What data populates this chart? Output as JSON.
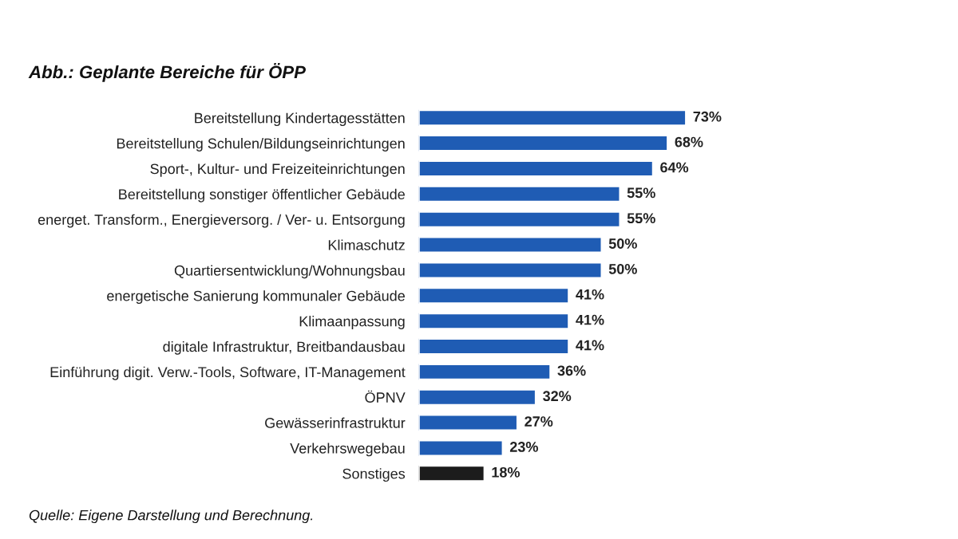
{
  "chart_data": {
    "type": "bar",
    "orientation": "horizontal",
    "title": "Abb.: Geplante Bereiche für ÖPP",
    "categories": [
      "Bereitstellung Kindertagesstätten",
      "Bereitstellung Schulen/Bildungseinrichtungen",
      "Sport-, Kultur- und Freizeiteinrichtungen",
      "Bereitstellung sonstiger öffentlicher Gebäude",
      "energet. Transform., Energieversorg. / Ver- u. Entsorgung",
      "Klimaschutz",
      "Quartiersentwicklung/Wohnungsbau",
      "energetische Sanierung kommunaler Gebäude",
      "Klimaanpassung",
      "digitale Infrastruktur, Breitbandausbau",
      "Einführung digit. Verw.-Tools, Software, IT-Management",
      "ÖPNV",
      "Gewässerinfrastruktur",
      "Verkehrswegebau",
      "Sonstiges"
    ],
    "values": [
      73,
      68,
      64,
      55,
      55,
      50,
      50,
      41,
      41,
      41,
      36,
      32,
      27,
      23,
      18
    ],
    "value_labels": [
      "73%",
      "68%",
      "64%",
      "55%",
      "55%",
      "50%",
      "50%",
      "41%",
      "41%",
      "41%",
      "36%",
      "32%",
      "27%",
      "23%",
      "18%"
    ],
    "colors": [
      "#1f5cb4",
      "#1f5cb4",
      "#1f5cb4",
      "#1f5cb4",
      "#1f5cb4",
      "#1f5cb4",
      "#1f5cb4",
      "#1f5cb4",
      "#1f5cb4",
      "#1f5cb4",
      "#1f5cb4",
      "#1f5cb4",
      "#1f5cb4",
      "#1f5cb4",
      "#1c1c1c"
    ],
    "tick_labels": "y",
    "grid": false,
    "annotations": [
      "Quelle: Eigene Darstellung und Berechnung."
    ]
  }
}
